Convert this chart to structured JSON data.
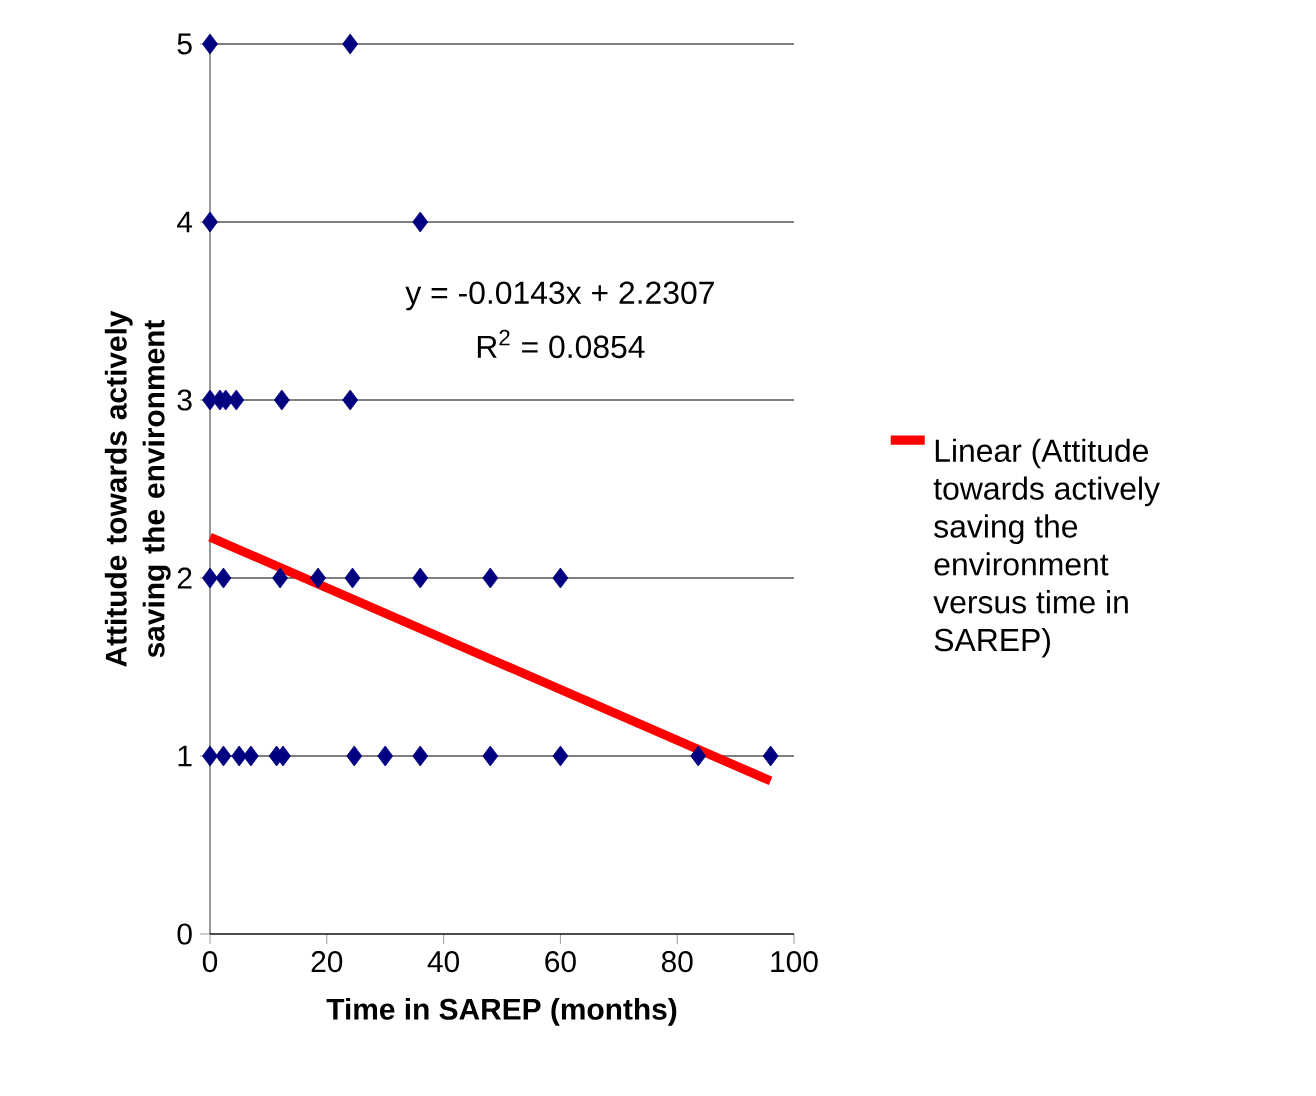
{
  "chart_data": {
    "type": "scatter",
    "xlabel": "Time in SAREP (months)",
    "ylabel": "Attitude towards actively saving the environment",
    "xlim": [
      0,
      100
    ],
    "ylim": [
      0,
      5
    ],
    "xticks": [
      0,
      20,
      40,
      60,
      80,
      100
    ],
    "yticks": [
      0,
      1,
      2,
      3,
      4,
      5
    ],
    "grid": "y",
    "legend": "right",
    "marker": "diamond",
    "annotations": [
      "y = -0.0143x + 2.2307",
      "R$^{2}$ = 0.0854"
    ],
    "series": [
      {
        "color": "#000080",
        "x": [
          0,
          24,
          0,
          36,
          0,
          1.7,
          2.7,
          4.5,
          12.3,
          24,
          0,
          2.3,
          12,
          18.5,
          24.4,
          36,
          48,
          60,
          0,
          2.3,
          5,
          7,
          11.4,
          12.5,
          24.7,
          30,
          36,
          48,
          60,
          83.6,
          96
        ],
        "values": [
          5,
          5,
          4,
          4,
          3,
          3,
          3,
          3,
          3,
          3,
          2,
          2,
          2,
          2,
          2,
          2,
          2,
          2,
          1,
          1,
          1,
          1,
          1,
          1,
          1,
          1,
          1,
          1,
          1,
          1,
          1
        ]
      },
      {
        "type": "line",
        "name": "Linear (Attitude towards actively saving the environment versus time in SAREP)",
        "color": "#ff0000",
        "line_style": "solid",
        "marker": "none",
        "x": [
          0,
          96
        ],
        "values": [
          2.23,
          0.86
        ]
      }
    ]
  }
}
